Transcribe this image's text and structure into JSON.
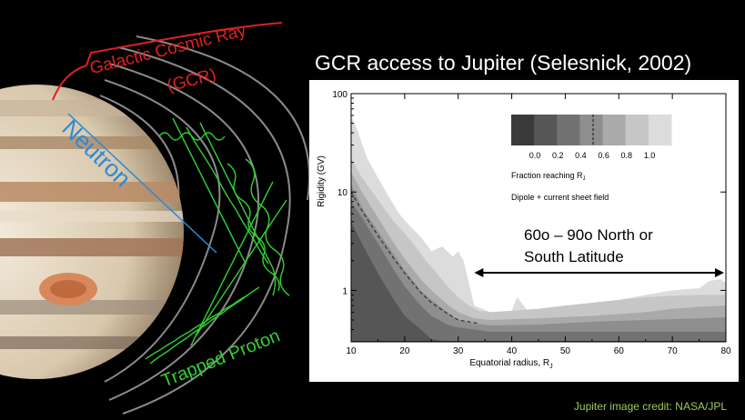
{
  "slide": {
    "title": "GCR access to Jupiter (Selesnick, 2002)",
    "credit": "Jupiter image credit: NASA/JPL"
  },
  "illustration": {
    "gcr_label_line1": "Galactic Cosmic Ray",
    "gcr_label_line2": "(GCR)",
    "neutron_label": "Neutron",
    "proton_label": "Trapped Proton",
    "colors": {
      "gcr": "#e02020",
      "neutron": "#2a8ad8",
      "proton": "#30d030"
    }
  },
  "chart_data": {
    "type": "area",
    "xlabel": "Equatorial radius, R",
    "xlabel_sub": "J",
    "ylabel": "Rigidity (GV)",
    "xlim": [
      10,
      80
    ],
    "ylim": [
      0.3,
      100
    ],
    "yscale": "log",
    "x_ticks": [
      10,
      20,
      30,
      40,
      50,
      60,
      70,
      80
    ],
    "y_ticks": [
      {
        "value": 1,
        "label": "1"
      },
      {
        "value": 10,
        "label": "10"
      },
      {
        "value": 100,
        "label": "100"
      }
    ],
    "legend": {
      "labels": [
        "0.0",
        "0.2",
        "0.4",
        "0.6",
        "0.8",
        "1.0"
      ],
      "title": "Fraction reaching R",
      "title_sub": "J",
      "subtitle": "Dipole + current sheet field",
      "colors": [
        "#3a3a3a",
        "#565656",
        "#727272",
        "#8e8e8e",
        "#aaaaaa",
        "#c6c6c6",
        "#dcdcdc"
      ]
    },
    "series": [
      {
        "level": 0.0,
        "x": [
          10,
          12,
          15,
          18,
          20,
          23,
          25,
          28,
          30
        ],
        "y": [
          5,
          3,
          1.5,
          0.8,
          0.55,
          0.4,
          0.32,
          0.3,
          0.3
        ]
      },
      {
        "level": 0.2,
        "x": [
          10,
          12,
          15,
          18,
          20,
          23,
          25,
          28,
          30,
          33,
          36,
          80
        ],
        "y": [
          8,
          5.5,
          3,
          1.6,
          1.1,
          0.7,
          0.55,
          0.45,
          0.42,
          0.4,
          0.38,
          0.38
        ]
      },
      {
        "level": 0.4,
        "x": [
          10,
          12,
          15,
          18,
          20,
          23,
          25,
          28,
          30,
          33,
          36,
          45,
          55,
          65,
          75,
          80
        ],
        "y": [
          12,
          7,
          4,
          2.3,
          1.6,
          1,
          0.8,
          0.6,
          0.5,
          0.46,
          0.44,
          0.45,
          0.48,
          0.5,
          0.52,
          0.53
        ]
      },
      {
        "level": 0.6,
        "x": [
          10,
          12,
          15,
          18,
          20,
          23,
          25,
          28,
          30,
          33,
          36,
          45,
          55,
          65,
          70,
          75,
          80
        ],
        "y": [
          16,
          10,
          5.5,
          3,
          2.1,
          1.3,
          1,
          0.72,
          0.6,
          0.52,
          0.5,
          0.52,
          0.55,
          0.6,
          0.65,
          0.68,
          0.7
        ]
      },
      {
        "level": 0.8,
        "x": [
          10,
          12,
          14,
          16,
          18,
          20,
          22,
          24,
          26,
          28,
          30,
          32,
          34,
          36,
          40,
          45,
          50,
          55,
          60,
          65,
          70,
          75,
          80
        ],
        "y": [
          22,
          14,
          10,
          7,
          5,
          3.8,
          2.8,
          2,
          1.5,
          1.1,
          0.85,
          0.7,
          0.62,
          0.6,
          0.62,
          0.65,
          0.7,
          0.75,
          0.8,
          0.85,
          0.88,
          0.9,
          0.9
        ]
      },
      {
        "level": 1.0,
        "x": [
          10,
          11,
          13,
          15,
          17,
          19,
          21,
          23,
          25,
          27,
          29,
          30,
          31,
          33,
          36,
          40,
          41,
          43,
          46,
          50,
          55,
          60,
          65,
          70,
          75,
          77,
          79,
          80
        ],
        "y": [
          60,
          45,
          22,
          14,
          9,
          6,
          4.5,
          3.5,
          2.5,
          2.8,
          2.2,
          2.5,
          2,
          0.7,
          0.6,
          0.62,
          0.85,
          0.62,
          0.6,
          0.63,
          0.7,
          0.8,
          0.9,
          1.0,
          1.05,
          1.25,
          1.3,
          1.2
        ]
      }
    ],
    "dashed_line": {
      "x": [
        10,
        12,
        15,
        18,
        20,
        23,
        25,
        28,
        30,
        34
      ],
      "y": [
        10,
        6.5,
        3.6,
        2.1,
        1.5,
        0.95,
        0.75,
        0.58,
        0.5,
        0.46
      ]
    },
    "annotation": {
      "line1": "60o – 90o North or",
      "line2": "South Latitude",
      "x_range": [
        33,
        80
      ]
    }
  }
}
